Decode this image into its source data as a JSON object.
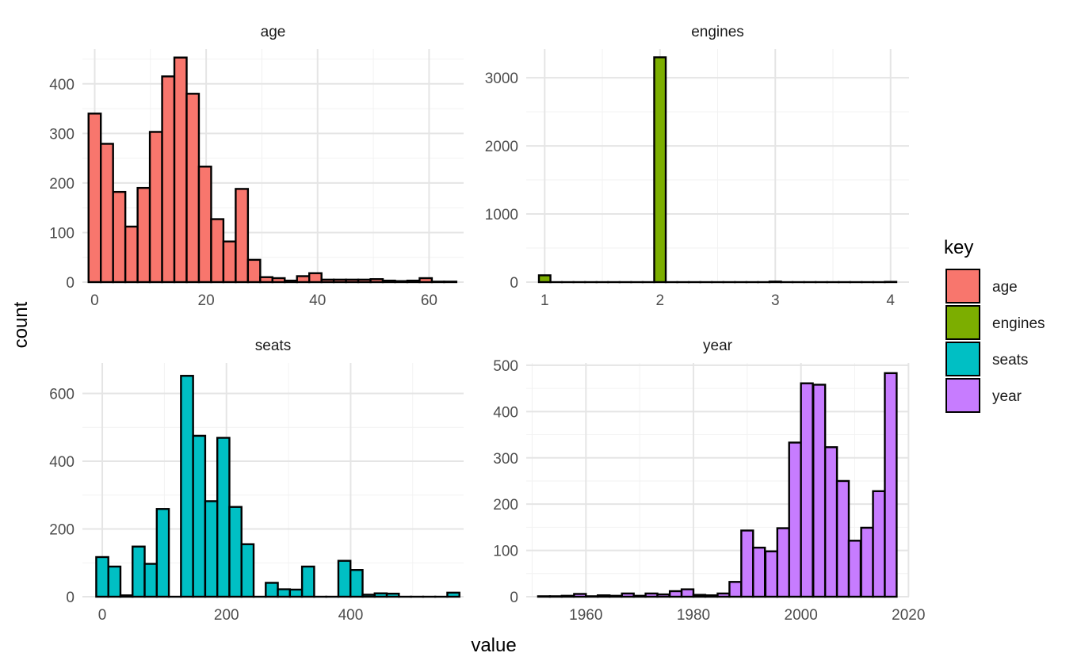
{
  "chart_data": {
    "type": "bar",
    "xlabel": "value",
    "ylabel": "count",
    "grid": true,
    "legend": {
      "title": "key",
      "placement": "right",
      "entries": [
        {
          "label": "age",
          "color": "#F8766D"
        },
        {
          "label": "engines",
          "color": "#7CAE00"
        },
        {
          "label": "seats",
          "color": "#00BFC4"
        },
        {
          "label": "year",
          "color": "#C77CFF"
        }
      ]
    },
    "panels": [
      {
        "title": "age",
        "color": "#F8766D",
        "xlim": [
          -2.2,
          66.2
        ],
        "ylim": [
          0,
          470
        ],
        "xticks": [
          0,
          20,
          40,
          60
        ],
        "yticks": [
          0,
          100,
          200,
          300,
          400
        ],
        "bins": [
          {
            "x": 0.0,
            "count": 340
          },
          {
            "x": 2.2,
            "count": 279
          },
          {
            "x": 4.4,
            "count": 182
          },
          {
            "x": 6.6,
            "count": 112
          },
          {
            "x": 8.8,
            "count": 190
          },
          {
            "x": 11.0,
            "count": 303
          },
          {
            "x": 13.2,
            "count": 415
          },
          {
            "x": 15.4,
            "count": 453
          },
          {
            "x": 17.6,
            "count": 380
          },
          {
            "x": 19.8,
            "count": 233
          },
          {
            "x": 22.0,
            "count": 127
          },
          {
            "x": 24.2,
            "count": 82
          },
          {
            "x": 26.4,
            "count": 188
          },
          {
            "x": 28.6,
            "count": 45
          },
          {
            "x": 30.8,
            "count": 10
          },
          {
            "x": 33.0,
            "count": 8
          },
          {
            "x": 35.2,
            "count": 3
          },
          {
            "x": 37.4,
            "count": 12
          },
          {
            "x": 39.6,
            "count": 18
          },
          {
            "x": 41.8,
            "count": 5
          },
          {
            "x": 44.0,
            "count": 5
          },
          {
            "x": 46.2,
            "count": 5
          },
          {
            "x": 48.4,
            "count": 5
          },
          {
            "x": 50.6,
            "count": 6
          },
          {
            "x": 52.8,
            "count": 3
          },
          {
            "x": 55.0,
            "count": 2
          },
          {
            "x": 57.2,
            "count": 3
          },
          {
            "x": 59.4,
            "count": 8
          },
          {
            "x": 61.6,
            "count": 1
          },
          {
            "x": 63.8,
            "count": 1
          }
        ]
      },
      {
        "title": "engines",
        "color": "#7CAE00",
        "xlim": [
          0.84,
          4.16
        ],
        "ylim": [
          0,
          3420
        ],
        "xticks": [
          1,
          2,
          3,
          4
        ],
        "yticks": [
          0,
          1000,
          2000,
          3000
        ],
        "bins": [
          {
            "x": 1.0,
            "count": 100
          },
          {
            "x": 1.1,
            "count": 0
          },
          {
            "x": 1.2,
            "count": 0
          },
          {
            "x": 1.3,
            "count": 0
          },
          {
            "x": 1.4,
            "count": 0
          },
          {
            "x": 1.5,
            "count": 0
          },
          {
            "x": 1.6,
            "count": 0
          },
          {
            "x": 1.7,
            "count": 0
          },
          {
            "x": 1.8,
            "count": 0
          },
          {
            "x": 1.9,
            "count": 0
          },
          {
            "x": 2.0,
            "count": 3300
          },
          {
            "x": 2.1,
            "count": 0
          },
          {
            "x": 2.2,
            "count": 0
          },
          {
            "x": 2.3,
            "count": 0
          },
          {
            "x": 2.4,
            "count": 0
          },
          {
            "x": 2.5,
            "count": 0
          },
          {
            "x": 2.6,
            "count": 0
          },
          {
            "x": 2.7,
            "count": 0
          },
          {
            "x": 2.8,
            "count": 0
          },
          {
            "x": 2.9,
            "count": 0
          },
          {
            "x": 3.0,
            "count": 8
          },
          {
            "x": 3.1,
            "count": 0
          },
          {
            "x": 3.2,
            "count": 0
          },
          {
            "x": 3.3,
            "count": 0
          },
          {
            "x": 3.4,
            "count": 0
          },
          {
            "x": 3.5,
            "count": 0
          },
          {
            "x": 3.6,
            "count": 0
          },
          {
            "x": 3.7,
            "count": 0
          },
          {
            "x": 3.8,
            "count": 0
          },
          {
            "x": 3.9,
            "count": 0
          },
          {
            "x": 4.0,
            "count": 4
          }
        ]
      },
      {
        "title": "seats",
        "color": "#00BFC4",
        "xlim": [
          -32,
          582
        ],
        "ylim": [
          0,
          690
        ],
        "xticks": [
          0,
          200,
          400
        ],
        "yticks": [
          0,
          200,
          400,
          600
        ],
        "bins": [
          {
            "x": 0,
            "count": 117
          },
          {
            "x": 19.5,
            "count": 89
          },
          {
            "x": 39,
            "count": 4
          },
          {
            "x": 58.5,
            "count": 148
          },
          {
            "x": 78,
            "count": 97
          },
          {
            "x": 97.5,
            "count": 259
          },
          {
            "x": 117,
            "count": 0
          },
          {
            "x": 136.5,
            "count": 652
          },
          {
            "x": 156,
            "count": 475
          },
          {
            "x": 175.5,
            "count": 282
          },
          {
            "x": 195,
            "count": 469
          },
          {
            "x": 214.5,
            "count": 265
          },
          {
            "x": 234,
            "count": 155
          },
          {
            "x": 253.5,
            "count": 0
          },
          {
            "x": 273,
            "count": 41
          },
          {
            "x": 292.5,
            "count": 22
          },
          {
            "x": 312,
            "count": 21
          },
          {
            "x": 331.5,
            "count": 89
          },
          {
            "x": 351,
            "count": 0
          },
          {
            "x": 370.5,
            "count": 0
          },
          {
            "x": 390,
            "count": 106
          },
          {
            "x": 409.5,
            "count": 79
          },
          {
            "x": 429,
            "count": 6
          },
          {
            "x": 448.5,
            "count": 10
          },
          {
            "x": 468,
            "count": 9
          },
          {
            "x": 487.5,
            "count": 0
          },
          {
            "x": 507,
            "count": 0
          },
          {
            "x": 526.5,
            "count": 0
          },
          {
            "x": 546,
            "count": 0
          },
          {
            "x": 565.5,
            "count": 12
          }
        ]
      },
      {
        "title": "year",
        "color": "#C77CFF",
        "xlim": [
          1948.9,
          2020.1
        ],
        "ylim": [
          0,
          505
        ],
        "xticks": [
          1960,
          1980,
          2000,
          2020
        ],
        "yticks": [
          0,
          100,
          200,
          300,
          400,
          500
        ],
        "bins": [
          {
            "x": 1952.2,
            "count": 1
          },
          {
            "x": 1954.4,
            "count": 1
          },
          {
            "x": 1956.6,
            "count": 2
          },
          {
            "x": 1958.9,
            "count": 6
          },
          {
            "x": 1961.1,
            "count": 1
          },
          {
            "x": 1963.3,
            "count": 3
          },
          {
            "x": 1965.5,
            "count": 2
          },
          {
            "x": 1967.8,
            "count": 7
          },
          {
            "x": 1970.0,
            "count": 2
          },
          {
            "x": 1972.2,
            "count": 7
          },
          {
            "x": 1974.4,
            "count": 5
          },
          {
            "x": 1976.7,
            "count": 12
          },
          {
            "x": 1978.9,
            "count": 16
          },
          {
            "x": 1981.1,
            "count": 4
          },
          {
            "x": 1983.3,
            "count": 3
          },
          {
            "x": 1985.6,
            "count": 7
          },
          {
            "x": 1987.8,
            "count": 32
          },
          {
            "x": 1990.0,
            "count": 143
          },
          {
            "x": 1992.2,
            "count": 106
          },
          {
            "x": 1994.5,
            "count": 98
          },
          {
            "x": 1996.7,
            "count": 148
          },
          {
            "x": 1998.9,
            "count": 333
          },
          {
            "x": 2001.1,
            "count": 461
          },
          {
            "x": 2003.4,
            "count": 458
          },
          {
            "x": 2005.6,
            "count": 323
          },
          {
            "x": 2007.8,
            "count": 250
          },
          {
            "x": 2010.0,
            "count": 121
          },
          {
            "x": 2012.3,
            "count": 149
          },
          {
            "x": 2014.5,
            "count": 228
          },
          {
            "x": 2016.7,
            "count": 483
          }
        ]
      }
    ]
  }
}
